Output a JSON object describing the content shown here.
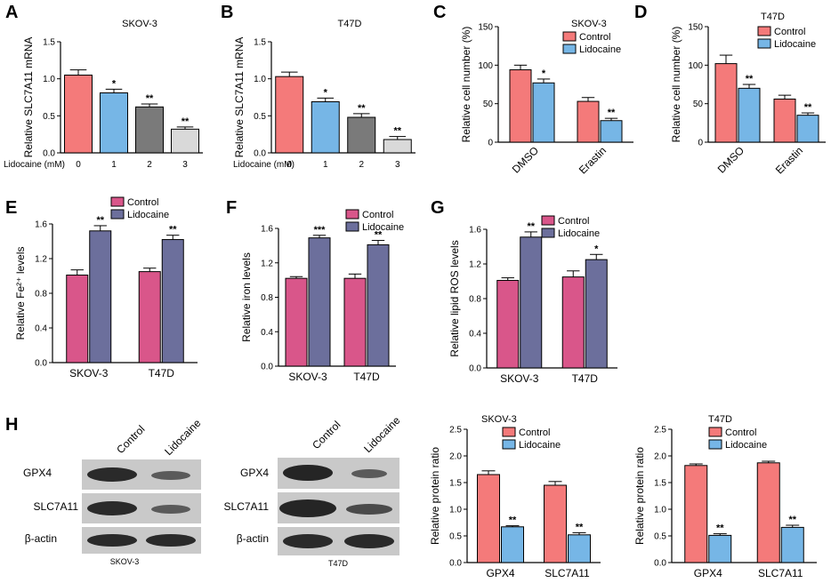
{
  "figure": {
    "panel_labels": [
      "A",
      "B",
      "C",
      "D",
      "E",
      "F",
      "G",
      "H"
    ],
    "blots": [
      {
        "title": "SKOV-3",
        "lanes": [
          "Control",
          "Lidocaine"
        ],
        "rows": [
          "GPX4",
          "SLC7A11",
          "β-actin"
        ]
      },
      {
        "title": "T47D",
        "lanes": [
          "Control",
          "Lidocaine"
        ],
        "rows": [
          "GPX4",
          "SLC7A11",
          "β-actin"
        ]
      }
    ]
  },
  "colors": {
    "salmon": "#f47a7a",
    "blue": "#76b6e6",
    "gray": "#7a7a7a",
    "lightgray": "#d9d9d9",
    "pink": "#d9568a",
    "purple": "#6c6f9c"
  },
  "chart_data": [
    {
      "id": "A",
      "type": "bar",
      "title": "SKOV-3",
      "ylabel": "Relative SLC7A11 mRNA",
      "xlabel": "Lidocaine (mM)",
      "categories": [
        "0",
        "1",
        "2",
        "3"
      ],
      "ylim": [
        0,
        1.5
      ],
      "yticks": [
        0.0,
        0.5,
        1.0,
        1.5
      ],
      "grouped": false,
      "series": [
        {
          "name": "",
          "values": [
            1.05,
            0.81,
            0.62,
            0.32
          ],
          "errors": [
            0.07,
            0.05,
            0.04,
            0.03
          ],
          "sig": [
            "",
            "*",
            "**",
            "**"
          ]
        }
      ],
      "bar_colors": [
        "#f47a7a",
        "#76b6e6",
        "#7a7a7a",
        "#d9d9d9"
      ]
    },
    {
      "id": "B",
      "type": "bar",
      "title": "T47D",
      "ylabel": "Relative SLC7A11 mRNA",
      "xlabel": "Lidocaine (mM)",
      "categories": [
        "0",
        "1",
        "2",
        "3"
      ],
      "ylim": [
        0,
        1.5
      ],
      "yticks": [
        0.0,
        0.5,
        1.0,
        1.5
      ],
      "grouped": false,
      "series": [
        {
          "name": "",
          "values": [
            1.03,
            0.69,
            0.48,
            0.18
          ],
          "errors": [
            0.06,
            0.05,
            0.05,
            0.04
          ],
          "sig": [
            "",
            "*",
            "**",
            "**"
          ]
        }
      ],
      "bar_colors": [
        "#f47a7a",
        "#76b6e6",
        "#7a7a7a",
        "#d9d9d9"
      ]
    },
    {
      "id": "C",
      "type": "bar",
      "title": "SKOV-3",
      "ylabel": "Relative cell number (%)",
      "xlabel": "",
      "categories": [
        "DMSO",
        "Erastin"
      ],
      "ylim": [
        0,
        150
      ],
      "yticks": [
        0,
        50,
        100,
        150
      ],
      "grouped": true,
      "series": [
        {
          "name": "Control",
          "values": [
            94,
            53
          ],
          "errors": [
            6,
            5
          ],
          "sig": [
            "",
            ""
          ]
        },
        {
          "name": "Lidocaine",
          "values": [
            77,
            28
          ],
          "errors": [
            5,
            3
          ],
          "sig": [
            "*",
            "**"
          ]
        }
      ],
      "colors": [
        "#f47a7a",
        "#76b6e6"
      ]
    },
    {
      "id": "D",
      "type": "bar",
      "title": "T47D",
      "ylabel": "Relative cell number (%)",
      "xlabel": "",
      "categories": [
        "DMSO",
        "Erastin"
      ],
      "ylim": [
        0,
        150
      ],
      "yticks": [
        0,
        50,
        100,
        150
      ],
      "grouped": true,
      "series": [
        {
          "name": "Control",
          "values": [
            102,
            56
          ],
          "errors": [
            11,
            5
          ],
          "sig": [
            "",
            ""
          ]
        },
        {
          "name": "Lidocaine",
          "values": [
            70,
            35
          ],
          "errors": [
            5,
            3
          ],
          "sig": [
            "**",
            "**"
          ]
        }
      ],
      "colors": [
        "#f47a7a",
        "#76b6e6"
      ]
    },
    {
      "id": "E",
      "type": "bar",
      "title": "",
      "ylabel": "Relative Fe²⁺ levels",
      "xlabel": "",
      "categories": [
        "SKOV-3",
        "T47D"
      ],
      "ylim": [
        0,
        1.6
      ],
      "yticks": [
        0.0,
        0.4,
        0.8,
        1.2,
        1.6
      ],
      "grouped": true,
      "series": [
        {
          "name": "Control",
          "values": [
            1.01,
            1.05
          ],
          "errors": [
            0.06,
            0.04
          ],
          "sig": [
            "",
            ""
          ]
        },
        {
          "name": "Lidocaine",
          "values": [
            1.52,
            1.42
          ],
          "errors": [
            0.06,
            0.05
          ],
          "sig": [
            "**",
            "**"
          ]
        }
      ],
      "colors": [
        "#d9568a",
        "#6c6f9c"
      ]
    },
    {
      "id": "F",
      "type": "bar",
      "title": "",
      "ylabel": "Relative iron levels",
      "xlabel": "",
      "categories": [
        "SKOV-3",
        "T47D"
      ],
      "ylim": [
        0,
        1.6
      ],
      "yticks": [
        0.0,
        0.4,
        0.8,
        1.2,
        1.6
      ],
      "grouped": true,
      "series": [
        {
          "name": "Control",
          "values": [
            1.02,
            1.02
          ],
          "errors": [
            0.02,
            0.05
          ],
          "sig": [
            "",
            ""
          ]
        },
        {
          "name": "Lidocaine",
          "values": [
            1.49,
            1.41
          ],
          "errors": [
            0.03,
            0.05
          ],
          "sig": [
            "***",
            "**"
          ]
        }
      ],
      "colors": [
        "#d9568a",
        "#6c6f9c"
      ]
    },
    {
      "id": "G",
      "type": "bar",
      "title": "",
      "ylabel": "Relative lipid ROS levels",
      "xlabel": "",
      "categories": [
        "SKOV-3",
        "T47D"
      ],
      "ylim": [
        0,
        1.6
      ],
      "yticks": [
        0.0,
        0.4,
        0.8,
        1.2,
        1.6
      ],
      "grouped": true,
      "series": [
        {
          "name": "Control",
          "values": [
            1.01,
            1.05
          ],
          "errors": [
            0.03,
            0.07
          ],
          "sig": [
            "",
            ""
          ]
        },
        {
          "name": "Lidocaine",
          "values": [
            1.51,
            1.25
          ],
          "errors": [
            0.06,
            0.06
          ],
          "sig": [
            "**",
            "*"
          ]
        }
      ],
      "colors": [
        "#d9568a",
        "#6c6f9c"
      ]
    },
    {
      "id": "H1",
      "type": "bar",
      "title": "SKOV-3",
      "ylabel": "Relative protein ratio",
      "xlabel": "",
      "categories": [
        "GPX4",
        "SLC7A11"
      ],
      "ylim": [
        0,
        2.5
      ],
      "yticks": [
        0.0,
        0.5,
        1.0,
        1.5,
        2.0,
        2.5
      ],
      "grouped": true,
      "series": [
        {
          "name": "Control",
          "values": [
            1.65,
            1.45
          ],
          "errors": [
            0.07,
            0.07
          ],
          "sig": [
            "",
            ""
          ]
        },
        {
          "name": "Lidocaine",
          "values": [
            0.67,
            0.52
          ],
          "errors": [
            0.02,
            0.04
          ],
          "sig": [
            "**",
            "**"
          ]
        }
      ],
      "colors": [
        "#f47a7a",
        "#76b6e6"
      ]
    },
    {
      "id": "H2",
      "type": "bar",
      "title": "T47D",
      "ylabel": "Relative protein ratio",
      "xlabel": "",
      "categories": [
        "GPX4",
        "SLC7A11"
      ],
      "ylim": [
        0,
        2.5
      ],
      "yticks": [
        0.0,
        0.5,
        1.0,
        1.5,
        2.0,
        2.5
      ],
      "grouped": true,
      "series": [
        {
          "name": "Control",
          "values": [
            1.82,
            1.87
          ],
          "errors": [
            0.03,
            0.03
          ],
          "sig": [
            "",
            ""
          ]
        },
        {
          "name": "Lidocaine",
          "values": [
            0.51,
            0.66
          ],
          "errors": [
            0.03,
            0.04
          ],
          "sig": [
            "**",
            "**"
          ]
        }
      ],
      "colors": [
        "#f47a7a",
        "#76b6e6"
      ]
    }
  ]
}
